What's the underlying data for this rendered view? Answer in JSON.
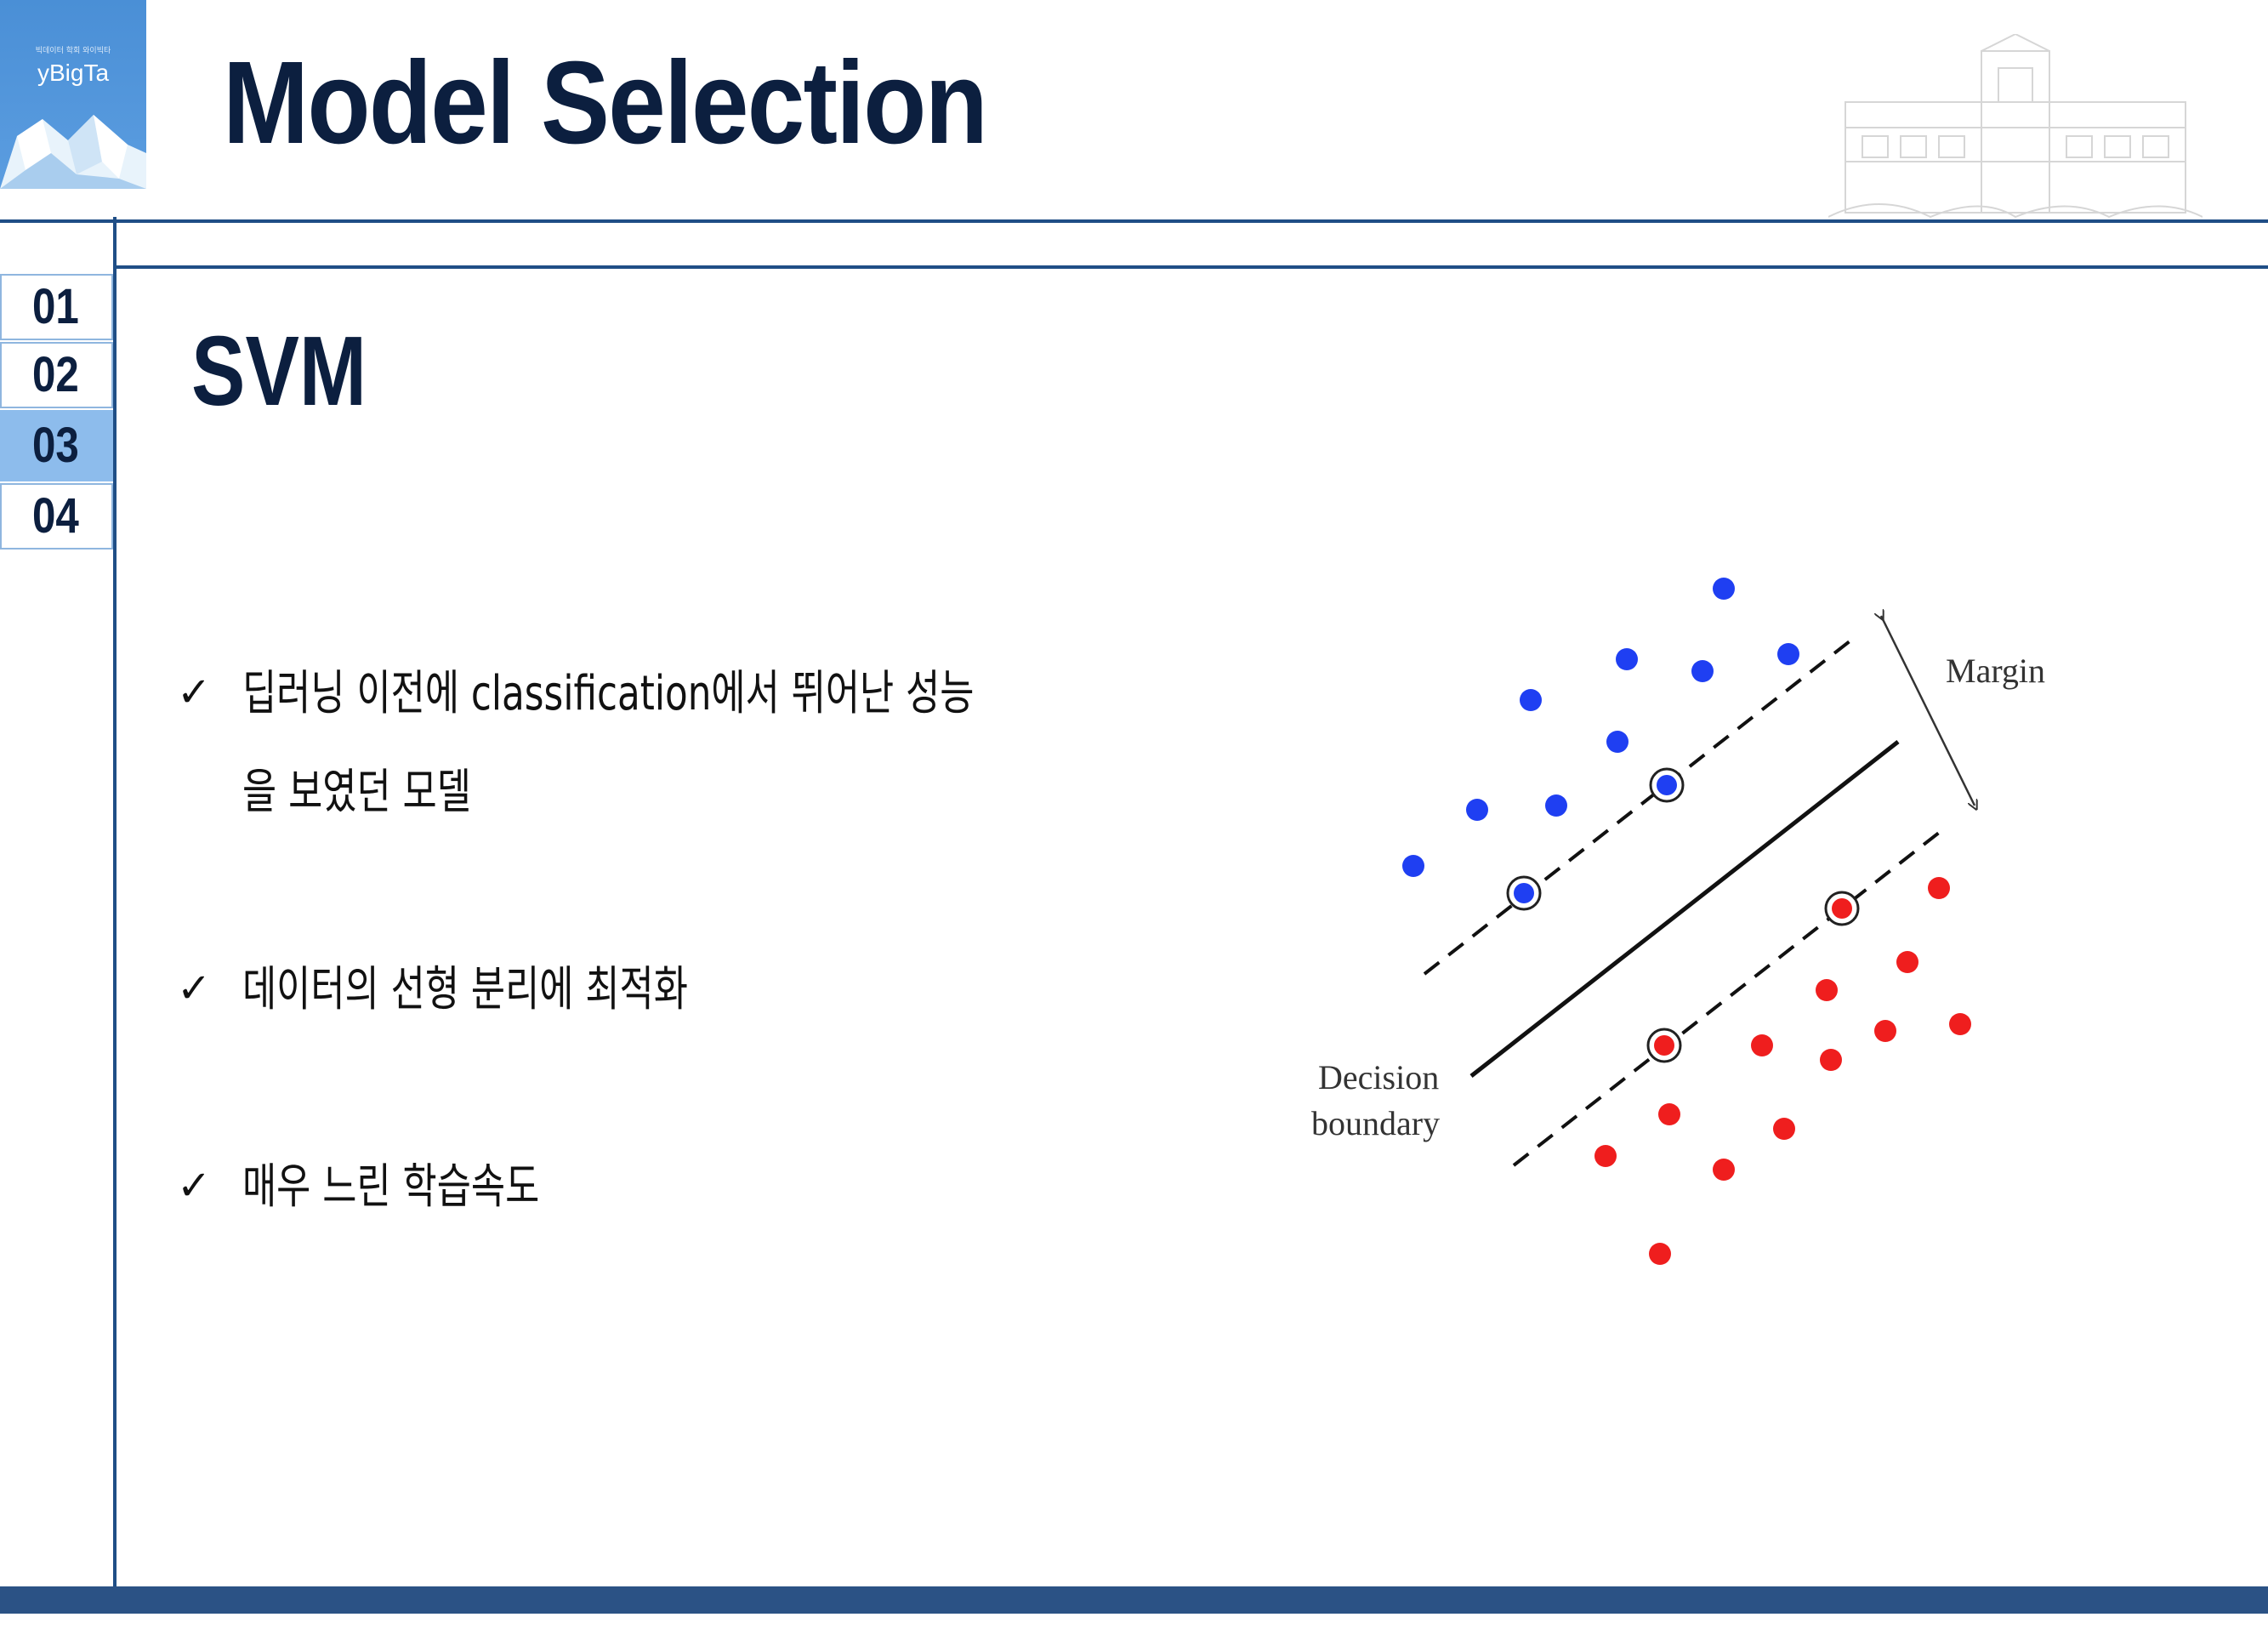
{
  "logo": {
    "small_text": "빅데이터 학회 와이빅타",
    "name": "yBigTa"
  },
  "header": {
    "title": "Model Selection"
  },
  "nav": {
    "items": [
      {
        "label": "01"
      },
      {
        "label": "02"
      },
      {
        "label": "03"
      },
      {
        "label": "04"
      }
    ],
    "active_index": 2
  },
  "content": {
    "subtitle": "SVM",
    "check_mark": "✓",
    "bullets": [
      {
        "line1": "딥러닝 이전에 classification에서 뛰어난 성능",
        "line2": "을 보였던 모델"
      },
      {
        "line1": "데이터의 선형 분리에 최적화"
      },
      {
        "line1": "매우 느린 학습속도"
      }
    ]
  },
  "diagram": {
    "margin_label": "Margin",
    "boundary_label_line1": "Decision",
    "boundary_label_line2": "boundary",
    "colors": {
      "class_a": "#1f3ff2",
      "class_b": "#ef1e1e",
      "line": "#111111"
    }
  },
  "colors": {
    "title": "#0c1f3f",
    "rule": "#1f4e86",
    "nav_active": "#8dbcec",
    "logo_bg": "#4a8fd6",
    "footer": "#2b5285"
  }
}
